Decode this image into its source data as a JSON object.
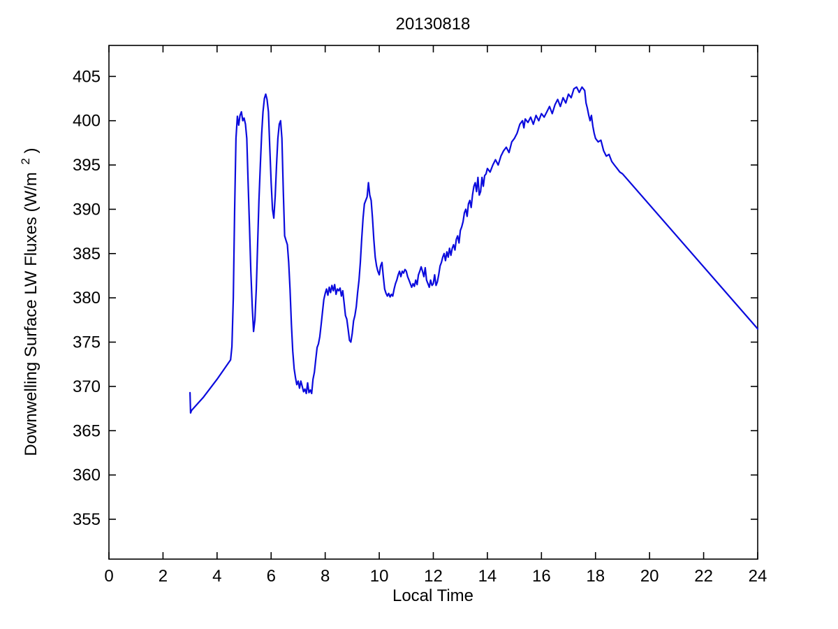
{
  "figure": {
    "background_color": "#ffffff"
  },
  "chart_data": {
    "type": "line",
    "title": "20130818",
    "xlabel": "Local Time",
    "ylabel": "Downwelling Surface LW Fluxes (W/m 2)",
    "ylabel_text": "Downwelling Surface LW Fluxes (W/m",
    "ylabel_superscript": "2",
    "ylabel_close": ")",
    "xlim": [
      0,
      24
    ],
    "ylim": [
      350.5,
      408.5
    ],
    "xticks": [
      0,
      2,
      4,
      6,
      8,
      10,
      12,
      14,
      16,
      18,
      20,
      22,
      24
    ],
    "yticks": [
      355,
      360,
      365,
      370,
      375,
      380,
      385,
      390,
      395,
      400,
      405
    ],
    "grid": false,
    "legend": null,
    "axis_color": "#000000",
    "line_color": "#0b0bdd",
    "line_width": 2.2,
    "series": [
      {
        "name": "downwelling-surface-lw-flux",
        "points": [
          [
            3.0,
            369.3
          ],
          [
            3.02,
            367.0
          ],
          [
            3.06,
            367.3
          ],
          [
            3.5,
            368.8
          ],
          [
            4.0,
            370.8
          ],
          [
            4.5,
            373.0
          ],
          [
            4.55,
            374.5
          ],
          [
            4.6,
            380.0
          ],
          [
            4.65,
            390.0
          ],
          [
            4.7,
            398.0
          ],
          [
            4.75,
            400.5
          ],
          [
            4.8,
            399.5
          ],
          [
            4.85,
            400.6
          ],
          [
            4.9,
            401.0
          ],
          [
            4.95,
            400.0
          ],
          [
            5.0,
            400.3
          ],
          [
            5.05,
            399.6
          ],
          [
            5.1,
            398.0
          ],
          [
            5.15,
            393.0
          ],
          [
            5.2,
            388.0
          ],
          [
            5.25,
            383.0
          ],
          [
            5.3,
            379.0
          ],
          [
            5.35,
            376.2
          ],
          [
            5.4,
            377.5
          ],
          [
            5.45,
            381.0
          ],
          [
            5.5,
            386.0
          ],
          [
            5.55,
            391.0
          ],
          [
            5.6,
            395.0
          ],
          [
            5.65,
            398.5
          ],
          [
            5.7,
            401.0
          ],
          [
            5.75,
            402.5
          ],
          [
            5.8,
            403.0
          ],
          [
            5.85,
            402.4
          ],
          [
            5.9,
            401.0
          ],
          [
            5.95,
            397.0
          ],
          [
            6.0,
            393.0
          ],
          [
            6.05,
            390.0
          ],
          [
            6.1,
            389.0
          ],
          [
            6.15,
            391.5
          ],
          [
            6.2,
            395.0
          ],
          [
            6.25,
            398.0
          ],
          [
            6.3,
            399.6
          ],
          [
            6.35,
            400.0
          ],
          [
            6.4,
            398.0
          ],
          [
            6.45,
            392.0
          ],
          [
            6.5,
            387.0
          ],
          [
            6.55,
            386.5
          ],
          [
            6.6,
            386.0
          ],
          [
            6.65,
            384.0
          ],
          [
            6.7,
            381.0
          ],
          [
            6.75,
            377.0
          ],
          [
            6.8,
            374.0
          ],
          [
            6.85,
            372.0
          ],
          [
            6.9,
            371.0
          ],
          [
            6.95,
            370.2
          ],
          [
            7.0,
            370.6
          ],
          [
            7.05,
            369.8
          ],
          [
            7.1,
            370.6
          ],
          [
            7.15,
            370.0
          ],
          [
            7.2,
            369.4
          ],
          [
            7.25,
            369.7
          ],
          [
            7.3,
            369.2
          ],
          [
            7.35,
            370.4
          ],
          [
            7.4,
            369.3
          ],
          [
            7.45,
            369.6
          ],
          [
            7.5,
            369.2
          ],
          [
            7.55,
            370.8
          ],
          [
            7.6,
            371.6
          ],
          [
            7.65,
            373.0
          ],
          [
            7.7,
            374.4
          ],
          [
            7.75,
            374.8
          ],
          [
            7.8,
            375.6
          ],
          [
            7.85,
            377.0
          ],
          [
            7.9,
            378.4
          ],
          [
            7.95,
            379.8
          ],
          [
            8.0,
            380.5
          ],
          [
            8.05,
            381.0
          ],
          [
            8.1,
            380.3
          ],
          [
            8.15,
            381.2
          ],
          [
            8.2,
            380.6
          ],
          [
            8.25,
            381.4
          ],
          [
            8.3,
            380.8
          ],
          [
            8.35,
            381.5
          ],
          [
            8.4,
            380.4
          ],
          [
            8.45,
            381.0
          ],
          [
            8.5,
            380.8
          ],
          [
            8.55,
            381.1
          ],
          [
            8.6,
            380.2
          ],
          [
            8.65,
            380.8
          ],
          [
            8.7,
            379.4
          ],
          [
            8.75,
            378.0
          ],
          [
            8.8,
            377.6
          ],
          [
            8.85,
            376.4
          ],
          [
            8.9,
            375.2
          ],
          [
            8.95,
            375.0
          ],
          [
            9.0,
            376.0
          ],
          [
            9.05,
            377.4
          ],
          [
            9.1,
            378.0
          ],
          [
            9.15,
            379.0
          ],
          [
            9.2,
            380.6
          ],
          [
            9.25,
            382.0
          ],
          [
            9.3,
            384.0
          ],
          [
            9.35,
            386.6
          ],
          [
            9.4,
            389.0
          ],
          [
            9.45,
            390.6
          ],
          [
            9.5,
            391.0
          ],
          [
            9.55,
            391.4
          ],
          [
            9.6,
            393.0
          ],
          [
            9.65,
            391.6
          ],
          [
            9.7,
            391.0
          ],
          [
            9.75,
            389.0
          ],
          [
            9.8,
            386.6
          ],
          [
            9.85,
            384.6
          ],
          [
            9.9,
            383.6
          ],
          [
            9.95,
            383.0
          ],
          [
            10.0,
            382.6
          ],
          [
            10.05,
            383.6
          ],
          [
            10.1,
            384.0
          ],
          [
            10.15,
            382.4
          ],
          [
            10.2,
            381.0
          ],
          [
            10.25,
            380.5
          ],
          [
            10.3,
            380.2
          ],
          [
            10.35,
            380.5
          ],
          [
            10.4,
            380.1
          ],
          [
            10.45,
            380.4
          ],
          [
            10.5,
            380.2
          ],
          [
            10.55,
            381.0
          ],
          [
            10.6,
            381.6
          ],
          [
            10.65,
            382.0
          ],
          [
            10.7,
            382.6
          ],
          [
            10.75,
            383.0
          ],
          [
            10.8,
            382.4
          ],
          [
            10.85,
            383.0
          ],
          [
            10.9,
            382.8
          ],
          [
            10.95,
            383.2
          ],
          [
            11.0,
            383.0
          ],
          [
            11.05,
            382.4
          ],
          [
            11.1,
            382.0
          ],
          [
            11.15,
            381.6
          ],
          [
            11.2,
            381.2
          ],
          [
            11.25,
            381.6
          ],
          [
            11.3,
            381.3
          ],
          [
            11.35,
            382.0
          ],
          [
            11.4,
            381.5
          ],
          [
            11.45,
            382.6
          ],
          [
            11.5,
            383.0
          ],
          [
            11.55,
            383.5
          ],
          [
            11.6,
            383.0
          ],
          [
            11.65,
            382.4
          ],
          [
            11.7,
            383.4
          ],
          [
            11.75,
            382.0
          ],
          [
            11.8,
            381.6
          ],
          [
            11.85,
            381.2
          ],
          [
            11.9,
            382.0
          ],
          [
            11.95,
            381.4
          ],
          [
            12.0,
            381.6
          ],
          [
            12.05,
            382.6
          ],
          [
            12.1,
            381.4
          ],
          [
            12.15,
            381.8
          ],
          [
            12.2,
            382.6
          ],
          [
            12.25,
            383.6
          ],
          [
            12.3,
            384.0
          ],
          [
            12.35,
            384.6
          ],
          [
            12.4,
            385.0
          ],
          [
            12.45,
            384.2
          ],
          [
            12.5,
            385.2
          ],
          [
            12.55,
            384.6
          ],
          [
            12.6,
            385.6
          ],
          [
            12.65,
            384.8
          ],
          [
            12.7,
            385.6
          ],
          [
            12.75,
            386.0
          ],
          [
            12.8,
            385.4
          ],
          [
            12.85,
            386.6
          ],
          [
            12.9,
            387.0
          ],
          [
            12.95,
            386.2
          ],
          [
            13.0,
            387.6
          ],
          [
            13.05,
            388.0
          ],
          [
            13.1,
            388.6
          ],
          [
            13.15,
            389.6
          ],
          [
            13.2,
            390.0
          ],
          [
            13.25,
            389.2
          ],
          [
            13.3,
            390.6
          ],
          [
            13.35,
            391.0
          ],
          [
            13.4,
            390.2
          ],
          [
            13.45,
            391.6
          ],
          [
            13.5,
            392.6
          ],
          [
            13.55,
            393.0
          ],
          [
            13.6,
            392.0
          ],
          [
            13.65,
            393.6
          ],
          [
            13.7,
            391.6
          ],
          [
            13.75,
            392.0
          ],
          [
            13.8,
            393.6
          ],
          [
            13.85,
            392.6
          ],
          [
            13.9,
            393.8
          ],
          [
            13.95,
            394.0
          ],
          [
            14.0,
            394.6
          ],
          [
            14.1,
            394.2
          ],
          [
            14.2,
            395.0
          ],
          [
            14.3,
            395.6
          ],
          [
            14.4,
            395.0
          ],
          [
            14.5,
            396.0
          ],
          [
            14.6,
            396.6
          ],
          [
            14.7,
            397.0
          ],
          [
            14.8,
            396.4
          ],
          [
            14.9,
            397.6
          ],
          [
            15.0,
            398.0
          ],
          [
            15.1,
            398.6
          ],
          [
            15.2,
            399.6
          ],
          [
            15.3,
            400.0
          ],
          [
            15.35,
            399.2
          ],
          [
            15.4,
            400.2
          ],
          [
            15.5,
            399.8
          ],
          [
            15.6,
            400.4
          ],
          [
            15.7,
            399.6
          ],
          [
            15.8,
            400.6
          ],
          [
            15.9,
            400.0
          ],
          [
            16.0,
            400.8
          ],
          [
            16.1,
            400.4
          ],
          [
            16.2,
            401.0
          ],
          [
            16.3,
            401.6
          ],
          [
            16.4,
            400.8
          ],
          [
            16.5,
            401.8
          ],
          [
            16.6,
            402.4
          ],
          [
            16.7,
            401.6
          ],
          [
            16.8,
            402.6
          ],
          [
            16.9,
            402.0
          ],
          [
            17.0,
            403.0
          ],
          [
            17.1,
            402.6
          ],
          [
            17.2,
            403.6
          ],
          [
            17.3,
            403.8
          ],
          [
            17.4,
            403.2
          ],
          [
            17.5,
            403.8
          ],
          [
            17.6,
            403.4
          ],
          [
            17.65,
            402.0
          ],
          [
            17.7,
            401.4
          ],
          [
            17.75,
            400.6
          ],
          [
            17.8,
            400.0
          ],
          [
            17.85,
            400.6
          ],
          [
            17.9,
            399.4
          ],
          [
            17.95,
            398.6
          ],
          [
            18.0,
            398.0
          ],
          [
            18.1,
            397.6
          ],
          [
            18.2,
            397.8
          ],
          [
            18.3,
            396.6
          ],
          [
            18.4,
            396.0
          ],
          [
            18.5,
            396.2
          ],
          [
            18.6,
            395.4
          ],
          [
            18.7,
            395.0
          ],
          [
            18.8,
            394.6
          ],
          [
            18.9,
            394.2
          ],
          [
            19.0,
            394.0
          ],
          [
            24.0,
            376.5
          ]
        ]
      }
    ]
  }
}
